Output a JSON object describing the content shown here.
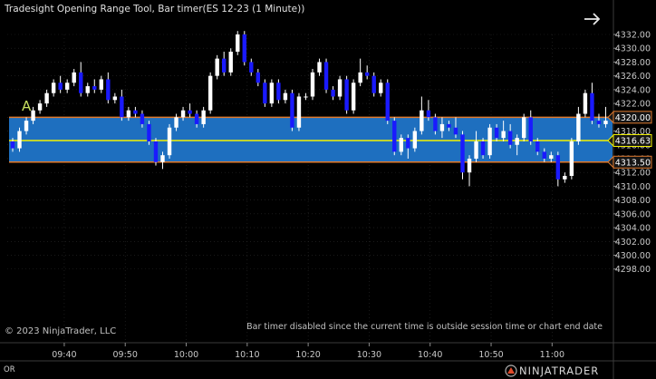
{
  "window": {
    "title": "Tradesight Opening Range Tool, Bar timer(ES 12-23 (1 Minute))",
    "copyright": "© 2023 NinjaTrader, LLC",
    "status_message": "Bar timer disabled since the current time is outside session time or chart end date",
    "bottom_left": "OR",
    "logo_text": "NINJATRADER",
    "annotation_letter": "A",
    "nav_icon": "arrow-right-icon"
  },
  "colors": {
    "background": "#000000",
    "up_candle": "#ffffff",
    "down_candle": "#1a1aff",
    "range_fill": "#1e6fbf",
    "range_border": "#e07a2e",
    "mid_line": "#f4f400",
    "axis_text": "#c8c8c8",
    "grid": "#2a2a2a",
    "annotation": "#c8e060"
  },
  "chart_data": {
    "type": "candlestick",
    "instrument": "ES 12-23 (1 Minute)",
    "ylim": [
      4297.0,
      4333.5
    ],
    "y_ticks": [
      "4332.00",
      "4330.00",
      "4328.00",
      "4326.00",
      "4324.00",
      "4322.00",
      "4320.00",
      "4318.00",
      "4316.00",
      "4314.00",
      "4312.00",
      "4310.00",
      "4308.00",
      "4306.00",
      "4304.00",
      "4302.00",
      "4300.00",
      "4298.00"
    ],
    "x_ticks": [
      "09:40",
      "09:50",
      "10:00",
      "10:10",
      "10:20",
      "10:30",
      "10:40",
      "10:50",
      "11:00"
    ],
    "opening_range": {
      "high": 4320.0,
      "mid": 4316.63,
      "low": 4313.5
    },
    "range_labels": [
      "4320.00",
      "4316.63",
      "4313.50"
    ],
    "candles": [
      [
        4316.5,
        4317.0,
        4315.0,
        4315.5
      ],
      [
        4315.5,
        4318.5,
        4315.0,
        4318.0
      ],
      [
        4318.0,
        4320.0,
        4317.5,
        4319.5
      ],
      [
        4319.5,
        4321.5,
        4319.0,
        4321.0
      ],
      [
        4321.0,
        4322.5,
        4320.5,
        4322.0
      ],
      [
        4322.0,
        4324.0,
        4321.5,
        4323.5
      ],
      [
        4323.5,
        4325.5,
        4323.0,
        4325.0
      ],
      [
        4325.0,
        4326.0,
        4323.5,
        4324.0
      ],
      [
        4324.0,
        4325.5,
        4323.5,
        4325.0
      ],
      [
        4325.0,
        4327.0,
        4324.5,
        4326.5
      ],
      [
        4326.5,
        4328.0,
        4323.0,
        4323.5
      ],
      [
        4323.5,
        4325.0,
        4323.0,
        4324.5
      ],
      [
        4324.5,
        4325.5,
        4323.5,
        4324.0
      ],
      [
        4324.0,
        4326.0,
        4323.5,
        4325.5
      ],
      [
        4325.5,
        4326.5,
        4322.0,
        4322.5
      ],
      [
        4322.5,
        4323.5,
        4322.0,
        4323.0
      ],
      [
        4323.0,
        4324.0,
        4319.5,
        4320.0
      ],
      [
        4320.0,
        4321.5,
        4319.5,
        4321.0
      ],
      [
        4321.0,
        4321.5,
        4320.0,
        4320.5
      ],
      [
        4320.5,
        4321.0,
        4318.5,
        4319.0
      ],
      [
        4319.0,
        4319.5,
        4316.0,
        4316.5
      ],
      [
        4316.5,
        4317.0,
        4313.0,
        4313.5
      ],
      [
        4313.5,
        4315.0,
        4312.5,
        4314.5
      ],
      [
        4314.5,
        4319.0,
        4314.0,
        4318.5
      ],
      [
        4318.5,
        4320.5,
        4318.0,
        4320.0
      ],
      [
        4320.0,
        4321.5,
        4319.5,
        4321.0
      ],
      [
        4321.0,
        4322.0,
        4320.0,
        4320.5
      ],
      [
        4320.5,
        4321.0,
        4318.5,
        4319.0
      ],
      [
        4319.0,
        4321.5,
        4318.5,
        4321.0
      ],
      [
        4321.0,
        4326.5,
        4320.5,
        4326.0
      ],
      [
        4326.0,
        4329.0,
        4325.5,
        4328.5
      ],
      [
        4328.5,
        4329.5,
        4326.0,
        4326.5
      ],
      [
        4326.5,
        4330.0,
        4326.0,
        4329.5
      ],
      [
        4329.5,
        4332.5,
        4329.0,
        4332.0
      ],
      [
        4332.0,
        4332.5,
        4327.5,
        4328.0
      ],
      [
        4328.0,
        4328.5,
        4326.0,
        4326.5
      ],
      [
        4326.5,
        4327.0,
        4324.5,
        4325.0
      ],
      [
        4325.0,
        4325.5,
        4321.5,
        4322.0
      ],
      [
        4322.0,
        4325.5,
        4321.5,
        4325.0
      ],
      [
        4325.0,
        4325.5,
        4322.0,
        4322.5
      ],
      [
        4322.5,
        4324.0,
        4322.0,
        4323.5
      ],
      [
        4323.5,
        4324.0,
        4318.0,
        4318.5
      ],
      [
        4318.5,
        4323.5,
        4318.0,
        4323.0
      ],
      [
        4323.0,
        4323.5,
        4322.5,
        4323.0
      ],
      [
        4323.0,
        4327.0,
        4322.5,
        4326.5
      ],
      [
        4326.5,
        4328.5,
        4326.0,
        4328.0
      ],
      [
        4328.0,
        4328.5,
        4323.5,
        4324.0
      ],
      [
        4324.0,
        4324.5,
        4322.5,
        4323.0
      ],
      [
        4323.0,
        4326.0,
        4322.5,
        4325.5
      ],
      [
        4325.5,
        4326.0,
        4320.5,
        4321.0
      ],
      [
        4321.0,
        4325.5,
        4320.5,
        4325.0
      ],
      [
        4325.0,
        4328.5,
        4324.5,
        4326.5
      ],
      [
        4326.5,
        4327.5,
        4325.5,
        4326.0
      ],
      [
        4326.0,
        4326.5,
        4323.0,
        4323.5
      ],
      [
        4323.5,
        4325.5,
        4323.0,
        4325.0
      ],
      [
        4325.0,
        4325.5,
        4319.0,
        4319.5
      ],
      [
        4319.5,
        4320.0,
        4314.5,
        4315.0
      ],
      [
        4315.0,
        4317.5,
        4314.5,
        4317.0
      ],
      [
        4317.0,
        4317.5,
        4314.0,
        4315.5
      ],
      [
        4315.5,
        4318.5,
        4315.0,
        4318.0
      ],
      [
        4318.0,
        4323.0,
        4317.5,
        4321.0
      ],
      [
        4321.0,
        4322.5,
        4319.5,
        4320.0
      ],
      [
        4320.0,
        4320.5,
        4317.5,
        4318.0
      ],
      [
        4318.0,
        4320.0,
        4317.0,
        4319.0
      ],
      [
        4319.0,
        4319.5,
        4318.0,
        4318.5
      ],
      [
        4318.5,
        4320.0,
        4317.0,
        4317.5
      ],
      [
        4317.5,
        4318.0,
        4311.0,
        4312.0
      ],
      [
        4312.0,
        4314.5,
        4310.0,
        4314.0
      ],
      [
        4314.0,
        4318.0,
        4313.5,
        4316.5
      ],
      [
        4316.5,
        4317.0,
        4314.0,
        4314.5
      ],
      [
        4314.5,
        4319.0,
        4314.0,
        4318.5
      ],
      [
        4318.5,
        4319.0,
        4316.5,
        4317.0
      ],
      [
        4317.0,
        4319.5,
        4316.5,
        4318.0
      ],
      [
        4318.0,
        4319.0,
        4315.5,
        4316.0
      ],
      [
        4316.0,
        4317.5,
        4314.5,
        4317.0
      ],
      [
        4317.0,
        4320.5,
        4316.5,
        4320.0
      ],
      [
        4320.0,
        4321.0,
        4316.0,
        4316.5
      ],
      [
        4316.5,
        4317.0,
        4314.5,
        4315.0
      ],
      [
        4315.0,
        4315.5,
        4313.5,
        4314.0
      ],
      [
        4314.0,
        4315.0,
        4313.5,
        4314.5
      ],
      [
        4314.5,
        4315.0,
        4310.0,
        4311.0
      ],
      [
        4311.0,
        4312.0,
        4310.5,
        4311.5
      ],
      [
        4311.5,
        4317.0,
        4311.0,
        4316.5
      ],
      [
        4316.5,
        4321.5,
        4316.0,
        4320.5
      ],
      [
        4320.5,
        4324.0,
        4320.0,
        4323.5
      ],
      [
        4323.5,
        4325.0,
        4319.0,
        4319.5
      ],
      [
        4319.5,
        4320.5,
        4318.5,
        4319.0
      ],
      [
        4319.0,
        4321.5,
        4318.5,
        4319.5
      ]
    ]
  }
}
